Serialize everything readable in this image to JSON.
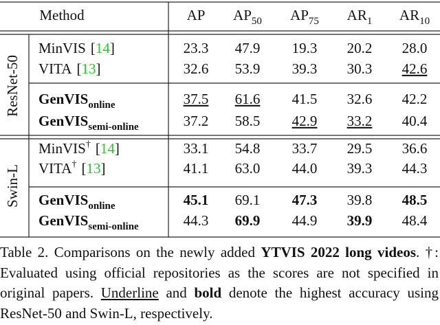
{
  "table": {
    "header": {
      "method": "Method",
      "metrics": [
        {
          "text": "AP"
        },
        {
          "text": "AP",
          "sub": "50"
        },
        {
          "text": "AP",
          "sub": "75"
        },
        {
          "text": "AR",
          "sub": "1"
        },
        {
          "text": "AR",
          "sub": "10"
        }
      ]
    },
    "groups": [
      {
        "label": "ResNet-50",
        "blocks": [
          [
            {
              "method": {
                "name": "MinVIS",
                "cite": "[14]"
              },
              "values": [
                "23.3",
                "47.9",
                "19.3",
                "20.2",
                "28.0"
              ],
              "style": [
                null,
                null,
                null,
                null,
                null
              ]
            },
            {
              "method": {
                "name": "VITA",
                "cite": "[13]"
              },
              "values": [
                "32.6",
                "53.9",
                "39.3",
                "30.3",
                "42.6"
              ],
              "style": [
                null,
                null,
                null,
                null,
                "u"
              ]
            }
          ],
          [
            {
              "method": {
                "name": "GenVIS",
                "sub": "online",
                "bold": true
              },
              "values": [
                "37.5",
                "61.6",
                "41.5",
                "32.6",
                "42.2"
              ],
              "style": [
                "u",
                "u",
                null,
                null,
                null
              ]
            },
            {
              "method": {
                "name": "GenVIS",
                "sub": "semi-online",
                "bold": true
              },
              "values": [
                "37.2",
                "58.5",
                "42.9",
                "33.2",
                "40.4"
              ],
              "style": [
                null,
                null,
                "u",
                "u",
                null
              ]
            }
          ]
        ]
      },
      {
        "label": "Swin-L",
        "blocks": [
          [
            {
              "method": {
                "name": "MinVIS",
                "mark": "†",
                "cite": "[14]"
              },
              "values": [
                "33.1",
                "54.8",
                "33.7",
                "29.5",
                "36.6"
              ],
              "style": [
                null,
                null,
                null,
                null,
                null
              ]
            },
            {
              "method": {
                "name": "VITA",
                "mark": "†",
                "cite": "[13]"
              },
              "values": [
                "41.1",
                "63.0",
                "44.0",
                "39.3",
                "44.3"
              ],
              "style": [
                null,
                null,
                null,
                null,
                null
              ]
            }
          ],
          [
            {
              "method": {
                "name": "GenVIS",
                "sub": "online",
                "bold": true
              },
              "values": [
                "45.1",
                "69.1",
                "47.3",
                "39.8",
                "48.5"
              ],
              "style": [
                "b",
                null,
                "b",
                null,
                "b"
              ]
            },
            {
              "method": {
                "name": "GenVIS",
                "sub": "semi-online",
                "bold": true
              },
              "values": [
                "44.3",
                "69.9",
                "44.9",
                "39.9",
                "48.4"
              ],
              "style": [
                null,
                "b",
                null,
                "b",
                null
              ]
            }
          ]
        ]
      }
    ]
  },
  "caption": [
    {
      "text": "Table 2.  Comparisons on the newly added "
    },
    {
      "text": "YTVIS 2022 long videos",
      "b": true
    },
    {
      "text": ". †: Evaluated using official repositories as the scores are not specified in original papers. "
    },
    {
      "text": "Underline",
      "u": true
    },
    {
      "text": " and "
    },
    {
      "text": "bold",
      "b": true
    },
    {
      "text": " denote the highest accuracy using ResNet-50 and Swin-L, respectively."
    }
  ]
}
